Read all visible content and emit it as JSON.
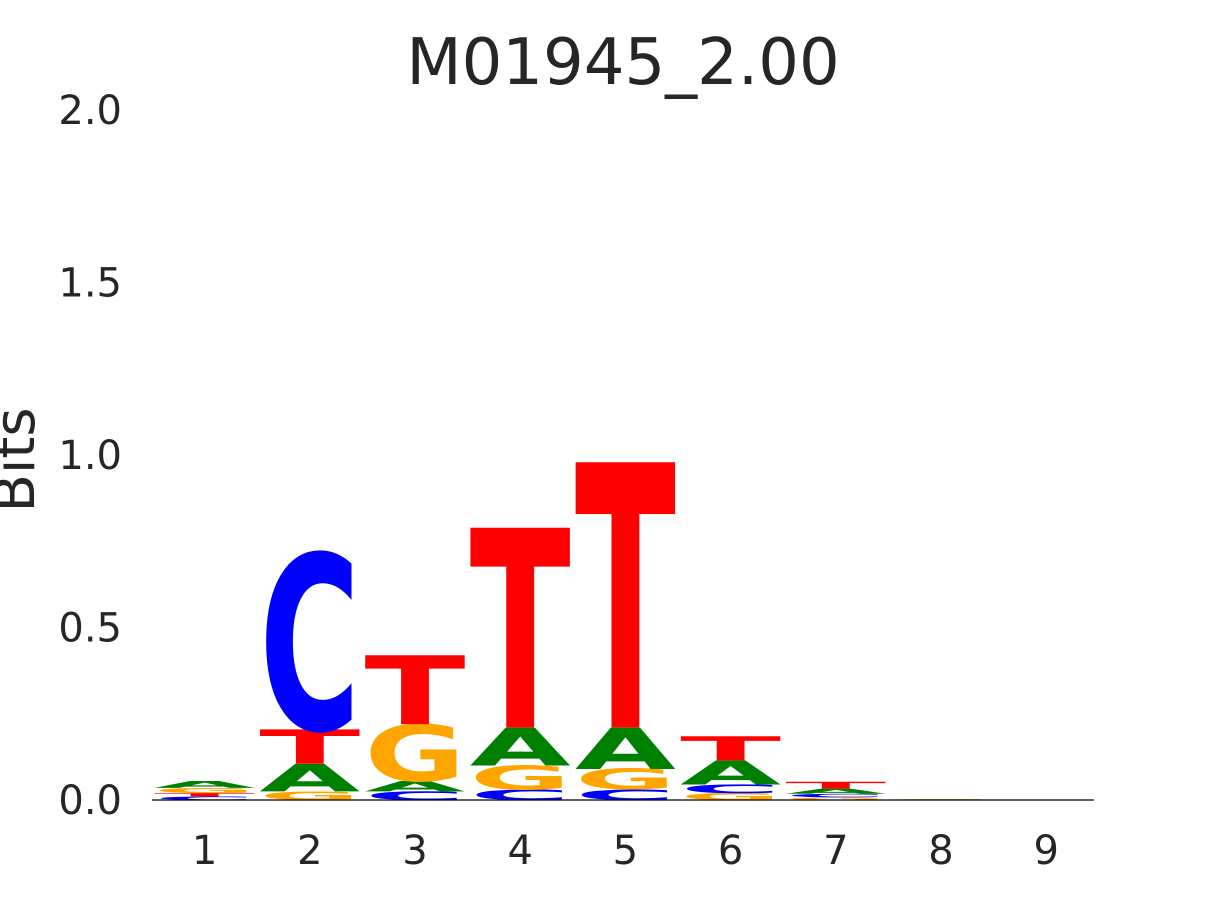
{
  "chart_data": {
    "type": "sequence-logo",
    "title": "M01945_2.00",
    "xlabel": "",
    "ylabel": "Bits",
    "ylim": [
      0,
      2.0
    ],
    "yticks": [
      "2.0",
      "1.5",
      "1.0",
      "0.5",
      "0.0"
    ],
    "ytick_values": [
      2.0,
      1.5,
      1.0,
      0.5,
      0.0
    ],
    "positions": [
      "1",
      "2",
      "3",
      "4",
      "5",
      "6",
      "7",
      "8",
      "9"
    ],
    "grid": false,
    "legend": "none",
    "colors": {
      "A": "#008000",
      "C": "#0000ff",
      "G": "#ffa500",
      "T": "#ff0000"
    },
    "stacks": [
      {
        "position": "1",
        "letters": [
          {
            "base": "C",
            "bits": 0.01
          },
          {
            "base": "T",
            "bits": 0.01
          },
          {
            "base": "G",
            "bits": 0.015
          },
          {
            "base": "A",
            "bits": 0.02
          }
        ]
      },
      {
        "position": "2",
        "letters": [
          {
            "base": "G",
            "bits": 0.025
          },
          {
            "base": "A",
            "bits": 0.08
          },
          {
            "base": "T",
            "bits": 0.1
          },
          {
            "base": "C",
            "bits": 0.51
          }
        ]
      },
      {
        "position": "3",
        "letters": [
          {
            "base": "C",
            "bits": 0.025
          },
          {
            "base": "A",
            "bits": 0.03
          },
          {
            "base": "G",
            "bits": 0.165
          },
          {
            "base": "T",
            "bits": 0.2
          }
        ]
      },
      {
        "position": "4",
        "letters": [
          {
            "base": "C",
            "bits": 0.03
          },
          {
            "base": "G",
            "bits": 0.07
          },
          {
            "base": "A",
            "bits": 0.11
          },
          {
            "base": "T",
            "bits": 0.58
          }
        ]
      },
      {
        "position": "5",
        "letters": [
          {
            "base": "C",
            "bits": 0.03
          },
          {
            "base": "G",
            "bits": 0.06
          },
          {
            "base": "A",
            "bits": 0.12
          },
          {
            "base": "T",
            "bits": 0.77
          }
        ]
      },
      {
        "position": "6",
        "letters": [
          {
            "base": "G",
            "bits": 0.02
          },
          {
            "base": "C",
            "bits": 0.025
          },
          {
            "base": "A",
            "bits": 0.07
          },
          {
            "base": "T",
            "bits": 0.07
          }
        ]
      },
      {
        "position": "7",
        "letters": [
          {
            "base": "G",
            "bits": 0.008
          },
          {
            "base": "C",
            "bits": 0.01
          },
          {
            "base": "A",
            "bits": 0.015
          },
          {
            "base": "T",
            "bits": 0.02
          }
        ]
      },
      {
        "position": "8",
        "letters": [
          {
            "base": "A",
            "bits": 0.002
          },
          {
            "base": "G",
            "bits": 0.002
          }
        ]
      },
      {
        "position": "9",
        "letters": []
      }
    ]
  }
}
